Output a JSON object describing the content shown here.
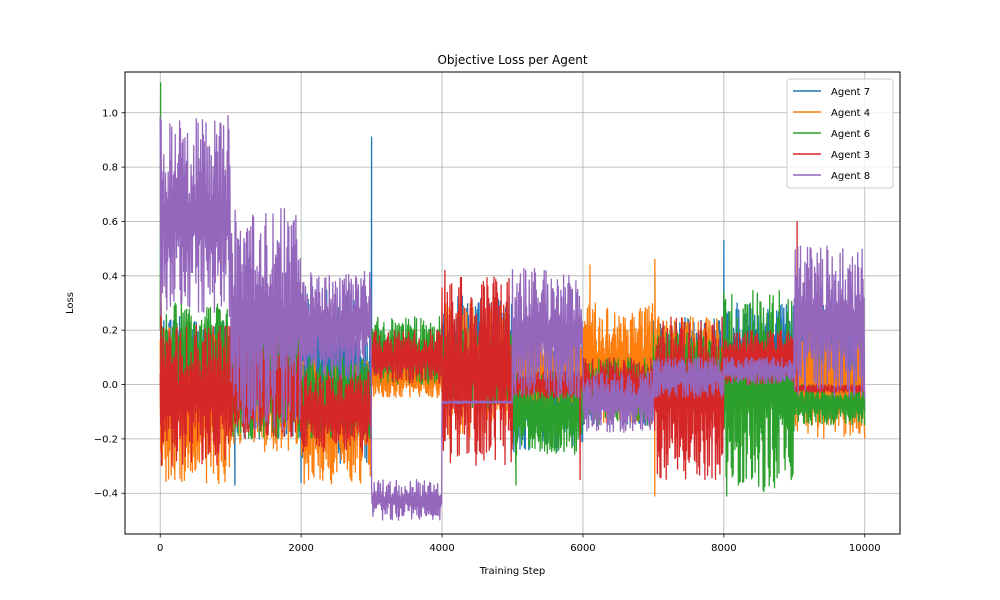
{
  "chart_data": {
    "type": "line",
    "title": "Objective Loss per Agent",
    "xlabel": "Training Step",
    "ylabel": "Loss",
    "xlim": [
      -500,
      10500
    ],
    "ylim": [
      -0.55,
      1.15
    ],
    "xticks": [
      0,
      2000,
      4000,
      6000,
      8000,
      10000
    ],
    "yticks": [
      -0.4,
      -0.2,
      0.0,
      0.2,
      0.4,
      0.6,
      0.8,
      1.0
    ],
    "xtick_labels": [
      "0",
      "2000",
      "4000",
      "6000",
      "8000",
      "10000"
    ],
    "ytick_labels": [
      "−0.4",
      "−0.2",
      "0.0",
      "0.2",
      "0.4",
      "0.6",
      "0.8",
      "1.0"
    ],
    "grid": true,
    "legend_position": "top-right",
    "x_range": [
      0,
      10000
    ],
    "series": [
      {
        "name": "Agent 7",
        "color": "#1f77b4",
        "segments": [
          {
            "x": [
              0,
              1000
            ],
            "range": [
              -0.15,
              0.25
            ]
          },
          {
            "x": [
              1000,
              2000
            ],
            "range": [
              -0.2,
              0.3
            ]
          },
          {
            "x": [
              2000,
              3000
            ],
            "range": [
              -0.3,
              0.35
            ]
          },
          {
            "x": [
              3000,
              4000
            ],
            "range": [
              0.0,
              0.15
            ]
          },
          {
            "x": [
              4000,
              5000
            ],
            "range": [
              -0.05,
              0.33
            ]
          },
          {
            "x": [
              5000,
              6000
            ],
            "range": [
              -0.25,
              0.2
            ]
          },
          {
            "x": [
              6000,
              7000
            ],
            "range": [
              -0.15,
              0.12
            ]
          },
          {
            "x": [
              7000,
              8000
            ],
            "range": [
              -0.1,
              0.25
            ]
          },
          {
            "x": [
              8000,
              9000
            ],
            "range": [
              -0.05,
              0.3
            ]
          },
          {
            "x": [
              9000,
              10000
            ],
            "range": [
              -0.1,
              0.3
            ]
          }
        ],
        "spikes": [
          {
            "x": 3000,
            "y": 0.91
          },
          {
            "x": 8000,
            "y": 0.53
          },
          {
            "x": 1060,
            "y": -0.37
          },
          {
            "x": 2000,
            "y": -0.36
          }
        ]
      },
      {
        "name": "Agent 4",
        "color": "#ff7f0e",
        "segments": [
          {
            "x": [
              0,
              1000
            ],
            "range": [
              -0.37,
              0.22
            ]
          },
          {
            "x": [
              1000,
              2000
            ],
            "range": [
              -0.25,
              0.2
            ]
          },
          {
            "x": [
              2000,
              3000
            ],
            "range": [
              -0.37,
              0.1
            ]
          },
          {
            "x": [
              3000,
              4000
            ],
            "range": [
              -0.05,
              0.1
            ]
          },
          {
            "x": [
              4000,
              5000
            ],
            "range": [
              -0.2,
              0.3
            ]
          },
          {
            "x": [
              5000,
              6000
            ],
            "range": [
              -0.1,
              0.2
            ]
          },
          {
            "x": [
              6000,
              7000
            ],
            "range": [
              -0.15,
              0.3
            ]
          },
          {
            "x": [
              7000,
              8000
            ],
            "range": [
              -0.1,
              0.25
            ]
          },
          {
            "x": [
              8000,
              9000
            ],
            "range": [
              -0.1,
              0.15
            ]
          },
          {
            "x": [
              9000,
              10000
            ],
            "range": [
              -0.2,
              0.2
            ]
          }
        ],
        "spikes": [
          {
            "x": 6100,
            "y": 0.44
          },
          {
            "x": 7020,
            "y": 0.46
          },
          {
            "x": 7020,
            "y": -0.41
          }
        ]
      },
      {
        "name": "Agent 6",
        "color": "#2ca02c",
        "segments": [
          {
            "x": [
              0,
              1000
            ],
            "range": [
              -0.1,
              0.3
            ]
          },
          {
            "x": [
              1000,
              2000
            ],
            "range": [
              -0.2,
              0.25
            ]
          },
          {
            "x": [
              2000,
              3000
            ],
            "range": [
              -0.2,
              0.1
            ]
          },
          {
            "x": [
              3000,
              4000
            ],
            "range": [
              0.0,
              0.25
            ]
          },
          {
            "x": [
              4000,
              5000
            ],
            "range": [
              -0.1,
              0.2
            ]
          },
          {
            "x": [
              5000,
              6000
            ],
            "range": [
              -0.26,
              0.05
            ]
          },
          {
            "x": [
              6000,
              7000
            ],
            "range": [
              -0.15,
              0.1
            ]
          },
          {
            "x": [
              7000,
              8000
            ],
            "range": [
              -0.1,
              0.2
            ]
          },
          {
            "x": [
              8000,
              9000
            ],
            "range": [
              -0.4,
              0.35
            ]
          },
          {
            "x": [
              9000,
              10000
            ],
            "range": [
              -0.15,
              0.0
            ]
          }
        ],
        "spikes": [
          {
            "x": 5,
            "y": 1.11
          },
          {
            "x": 8040,
            "y": -0.41
          },
          {
            "x": 5050,
            "y": -0.37
          }
        ]
      },
      {
        "name": "Agent 3",
        "color": "#d62728",
        "segments": [
          {
            "x": [
              0,
              1000
            ],
            "range": [
              -0.3,
              0.22
            ]
          },
          {
            "x": [
              1000,
              2000
            ],
            "range": [
              -0.2,
              0.2
            ]
          },
          {
            "x": [
              2000,
              3000
            ],
            "range": [
              -0.25,
              0.05
            ]
          },
          {
            "x": [
              3000,
              4000
            ],
            "range": [
              0.0,
              0.2
            ]
          },
          {
            "x": [
              4000,
              5000
            ],
            "range": [
              -0.3,
              0.4
            ]
          },
          {
            "x": [
              5000,
              6000
            ],
            "range": [
              -0.05,
              0.05
            ]
          },
          {
            "x": [
              6000,
              7000
            ],
            "range": [
              -0.1,
              0.1
            ]
          },
          {
            "x": [
              7000,
              8000
            ],
            "range": [
              -0.35,
              0.25
            ]
          },
          {
            "x": [
              8000,
              9000
            ],
            "range": [
              0.0,
              0.2
            ]
          },
          {
            "x": [
              9000,
              10000
            ],
            "range": [
              -0.03,
              0.0
            ]
          }
        ],
        "spikes": [
          {
            "x": 10,
            "y": 0.92
          },
          {
            "x": 9040,
            "y": 0.6
          },
          {
            "x": 4040,
            "y": 0.42
          },
          {
            "x": 5960,
            "y": -0.35
          }
        ]
      },
      {
        "name": "Agent 8",
        "color": "#9467bd",
        "segments": [
          {
            "x": [
              0,
              1000
            ],
            "range": [
              0.25,
              0.99
            ]
          },
          {
            "x": [
              1000,
              2000
            ],
            "range": [
              -0.17,
              0.65
            ]
          },
          {
            "x": [
              2000,
              3000
            ],
            "range": [
              0.02,
              0.42
            ]
          },
          {
            "x": [
              3000,
              4000
            ],
            "range": [
              -0.5,
              -0.35
            ]
          },
          {
            "x": [
              4000,
              5000
            ],
            "range": [
              -0.07,
              -0.06
            ]
          },
          {
            "x": [
              5000,
              6000
            ],
            "range": [
              -0.05,
              0.43
            ]
          },
          {
            "x": [
              6000,
              7000
            ],
            "range": [
              -0.18,
              0.05
            ]
          },
          {
            "x": [
              7000,
              8000
            ],
            "range": [
              -0.05,
              0.1
            ]
          },
          {
            "x": [
              8000,
              9000
            ],
            "range": [
              0.0,
              0.1
            ]
          },
          {
            "x": [
              9000,
              10000
            ],
            "range": [
              -0.05,
              0.51
            ]
          }
        ],
        "spikes": []
      }
    ]
  }
}
